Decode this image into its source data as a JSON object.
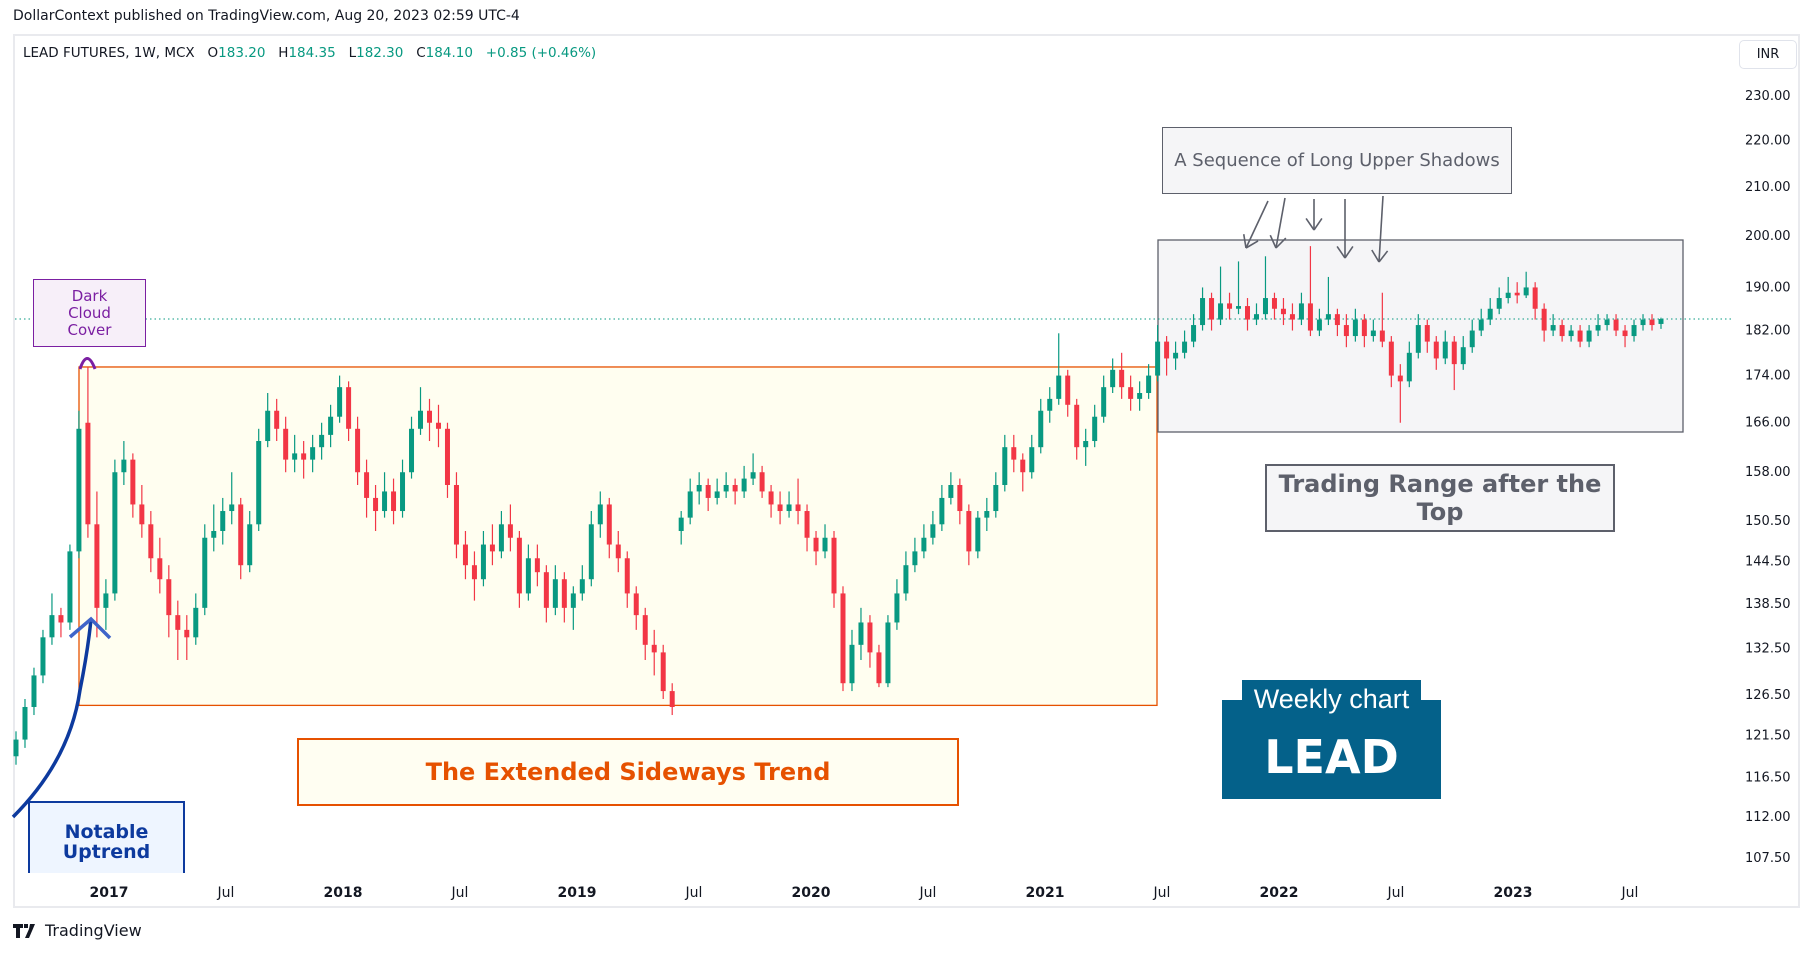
{
  "header": {
    "publisher": "DollarContext published on TradingView.com, Aug 20, 2023 02:59 UTC-4"
  },
  "legend": {
    "symbol": "LEAD FUTURES, 1W, MCX",
    "o_label": "O",
    "o": "183.20",
    "h_label": "H",
    "h": "184.35",
    "l_label": "L",
    "l": "182.30",
    "c_label": "C",
    "c": "184.10",
    "change": "+0.85 (+0.46%)"
  },
  "currency": "INR",
  "footer": {
    "brand": "TradingView"
  },
  "annotations": {
    "dark_cloud": "Dark Cloud Cover",
    "sequence": "A Sequence of Long Upper Shadows",
    "trading_range": "Trading Range after the Top",
    "sideways": "The Extended Sideways Trend",
    "uptrend": "Notable Uptrend",
    "badge_line1": "Weekly chart",
    "badge_line2": "LEAD"
  },
  "colors": {
    "up": "#089981",
    "down": "#f23645",
    "sideways_box": "#e65100",
    "range_box": "#5d606b",
    "dark_cloud": "#7b1fa2",
    "uptrend": "#0d3a9e",
    "badge": "#04618a",
    "last_price_line": "#089981"
  },
  "chart_data": {
    "type": "candlestick",
    "interval": "1W",
    "y_scale": "log",
    "ylim": [
      107.5,
      230
    ],
    "last_price": 184.1,
    "y_ticks": [
      230,
      220,
      210,
      200,
      190,
      182,
      174,
      166,
      158,
      150.5,
      144.5,
      138.5,
      132.5,
      126.5,
      121.5,
      116.5,
      112,
      107.5
    ],
    "x_ticks": [
      {
        "label": "2017",
        "year": true
      },
      {
        "label": "Jul"
      },
      {
        "label": "2018",
        "year": true
      },
      {
        "label": "Jul"
      },
      {
        "label": "2019",
        "year": true
      },
      {
        "label": "Jul"
      },
      {
        "label": "2020",
        "year": true
      },
      {
        "label": "Jul"
      },
      {
        "label": "2021",
        "year": true
      },
      {
        "label": "Jul"
      },
      {
        "label": "2022",
        "year": true
      },
      {
        "label": "Jul"
      },
      {
        "label": "2023",
        "year": true
      },
      {
        "label": "Jul"
      }
    ],
    "sideways_range": [
      125.2,
      175.5
    ],
    "top_range": [
      165,
      200
    ],
    "ohlc": [
      [
        119,
        122,
        118,
        121
      ],
      [
        121,
        126,
        120,
        125
      ],
      [
        125,
        130,
        124,
        129
      ],
      [
        129,
        135,
        128,
        134
      ],
      [
        134,
        140,
        133,
        137
      ],
      [
        137,
        138,
        134,
        136
      ],
      [
        136,
        147,
        135,
        146
      ],
      [
        146,
        168,
        145,
        165
      ],
      [
        166,
        175.5,
        148,
        150
      ],
      [
        150,
        155,
        134,
        138
      ],
      [
        138,
        142,
        135,
        140
      ],
      [
        140,
        160,
        139,
        158
      ],
      [
        158,
        163,
        156,
        160
      ],
      [
        160,
        161,
        151,
        153
      ],
      [
        153,
        156,
        148,
        150
      ],
      [
        150,
        152,
        143,
        145
      ],
      [
        145,
        148,
        140,
        142
      ],
      [
        142,
        144,
        134,
        137
      ],
      [
        137,
        139,
        131,
        135
      ],
      [
        135,
        137,
        131,
        134
      ],
      [
        134,
        140,
        133,
        138
      ],
      [
        138,
        150,
        137,
        148
      ],
      [
        148,
        153,
        146,
        149
      ],
      [
        149,
        154,
        147,
        152
      ],
      [
        152,
        158,
        150,
        153
      ],
      [
        153,
        154,
        142,
        144
      ],
      [
        144,
        152,
        143,
        150
      ],
      [
        150,
        165,
        149,
        163
      ],
      [
        163,
        171,
        162,
        168
      ],
      [
        168,
        170,
        163,
        165
      ],
      [
        165,
        167,
        158,
        160
      ],
      [
        160,
        164,
        158,
        161
      ],
      [
        161,
        163,
        157,
        160
      ],
      [
        160,
        164,
        158,
        162
      ],
      [
        162,
        166,
        160,
        164
      ],
      [
        164,
        169,
        162,
        167
      ],
      [
        167,
        174,
        166,
        172
      ],
      [
        172,
        173,
        163,
        165
      ],
      [
        165,
        167,
        156,
        158
      ],
      [
        158,
        160,
        151,
        154
      ],
      [
        154,
        156,
        149,
        152
      ],
      [
        152,
        158,
        151,
        155
      ],
      [
        155,
        157,
        150,
        152
      ],
      [
        152,
        160,
        151,
        158
      ],
      [
        158,
        167,
        157,
        165
      ],
      [
        165,
        172,
        164,
        168
      ],
      [
        168,
        170,
        163,
        166
      ],
      [
        166,
        169,
        162,
        165
      ],
      [
        165,
        166,
        154,
        156
      ],
      [
        156,
        158,
        145,
        147
      ],
      [
        147,
        149,
        142,
        144
      ],
      [
        144,
        146,
        139,
        142
      ],
      [
        142,
        149,
        141,
        147
      ],
      [
        147,
        150,
        144,
        146
      ],
      [
        146,
        152,
        145,
        150
      ],
      [
        150,
        153,
        146,
        148
      ],
      [
        148,
        149,
        138,
        140
      ],
      [
        140,
        147,
        139,
        145
      ],
      [
        145,
        147,
        141,
        143
      ],
      [
        143,
        144,
        136,
        138
      ],
      [
        138,
        144,
        137,
        142
      ],
      [
        142,
        143,
        136,
        138
      ],
      [
        138,
        141,
        135,
        140
      ],
      [
        140,
        144,
        139,
        142
      ],
      [
        142,
        152,
        141,
        150
      ],
      [
        150,
        155,
        148,
        153
      ],
      [
        153,
        154,
        145,
        147
      ],
      [
        147,
        149,
        143,
        145
      ],
      [
        145,
        146,
        138,
        140
      ],
      [
        140,
        141,
        135,
        137
      ],
      [
        137,
        138,
        131,
        133
      ],
      [
        133,
        135,
        129,
        132
      ],
      [
        132,
        133,
        126,
        127
      ],
      [
        127,
        128,
        124,
        125
      ],
      [
        149,
        152,
        147,
        151
      ],
      [
        151,
        157,
        150,
        155
      ],
      [
        155,
        158,
        153,
        156
      ],
      [
        156,
        157,
        152,
        154
      ],
      [
        154,
        157,
        153,
        155
      ],
      [
        155,
        158,
        154,
        156
      ],
      [
        156,
        157,
        153,
        155
      ],
      [
        155,
        159,
        154,
        157
      ],
      [
        157,
        161,
        156,
        158
      ],
      [
        158,
        159,
        154,
        155
      ],
      [
        155,
        156,
        151,
        153
      ],
      [
        153,
        155,
        150,
        152
      ],
      [
        152,
        155,
        151,
        153
      ],
      [
        153,
        157,
        150,
        152
      ],
      [
        152,
        153,
        146,
        148
      ],
      [
        148,
        149,
        144,
        146
      ],
      [
        146,
        150,
        145,
        148
      ],
      [
        148,
        149,
        138,
        140
      ],
      [
        140,
        141,
        127,
        128
      ],
      [
        128,
        135,
        127,
        133
      ],
      [
        133,
        138,
        131,
        136
      ],
      [
        136,
        137,
        130,
        132
      ],
      [
        132,
        133,
        127.5,
        128
      ],
      [
        128,
        137,
        127.5,
        136
      ],
      [
        136,
        142,
        135,
        140
      ],
      [
        140,
        146,
        139,
        144
      ],
      [
        144,
        148,
        143,
        146
      ],
      [
        146,
        150,
        145,
        148
      ],
      [
        148,
        152,
        147,
        150
      ],
      [
        150,
        156,
        149,
        154
      ],
      [
        154,
        158,
        153,
        156
      ],
      [
        156,
        157,
        150,
        152
      ],
      [
        152,
        153,
        144,
        146
      ],
      [
        146,
        152,
        145,
        151
      ],
      [
        151,
        154,
        149,
        152
      ],
      [
        152,
        158,
        151,
        156
      ],
      [
        156,
        164,
        155,
        162
      ],
      [
        162,
        164,
        158,
        160
      ],
      [
        160,
        161,
        155,
        158
      ],
      [
        158,
        164,
        157,
        162
      ],
      [
        162,
        170,
        161,
        168
      ],
      [
        168,
        172,
        166,
        170
      ],
      [
        170,
        181.5,
        169,
        174
      ],
      [
        174,
        175,
        167,
        169
      ],
      [
        169,
        170,
        160,
        162
      ],
      [
        162,
        165,
        159,
        163
      ],
      [
        163,
        169,
        162,
        167
      ],
      [
        167,
        174,
        166,
        172
      ],
      [
        172,
        177,
        171,
        175
      ],
      [
        175,
        178,
        170,
        172
      ],
      [
        172,
        174,
        168,
        170
      ],
      [
        170,
        173,
        168,
        171
      ],
      [
        171,
        176,
        170,
        174
      ],
      [
        174,
        183,
        173,
        180
      ],
      [
        180,
        181,
        174,
        177
      ],
      [
        177,
        180,
        175,
        178
      ],
      [
        178,
        182,
        177,
        180
      ],
      [
        180,
        185,
        179,
        183
      ],
      [
        183,
        190,
        182,
        188
      ],
      [
        188,
        189,
        182,
        184
      ],
      [
        184,
        194,
        183,
        187
      ],
      [
        187,
        189,
        184,
        186
      ],
      [
        186,
        195,
        185,
        186.5
      ],
      [
        186.5,
        188,
        182,
        184
      ],
      [
        184,
        187,
        183,
        185
      ],
      [
        185,
        196,
        184,
        188
      ],
      [
        188,
        189,
        184,
        186
      ],
      [
        186,
        188,
        183,
        185
      ],
      [
        185,
        187,
        182,
        184
      ],
      [
        184,
        189,
        183,
        187
      ],
      [
        187,
        198,
        181,
        182
      ],
      [
        182,
        186,
        181,
        184
      ],
      [
        184,
        192,
        183,
        185
      ],
      [
        185,
        186,
        181,
        183
      ],
      [
        183,
        185,
        179,
        181
      ],
      [
        181,
        186,
        180,
        184
      ],
      [
        184,
        185,
        179,
        181
      ],
      [
        181,
        184,
        180,
        182
      ],
      [
        182,
        189,
        179,
        180
      ],
      [
        180,
        181,
        172,
        174
      ],
      [
        174,
        176,
        166,
        173
      ],
      [
        173,
        180,
        172,
        178
      ],
      [
        178,
        185,
        177,
        183
      ],
      [
        183,
        184,
        178,
        180
      ],
      [
        180,
        181,
        175,
        177
      ],
      [
        177,
        182,
        176,
        180
      ],
      [
        180,
        181,
        171.5,
        176
      ],
      [
        176,
        181,
        175,
        179
      ],
      [
        179,
        184,
        178,
        182
      ],
      [
        182,
        186,
        181,
        184
      ],
      [
        184,
        188,
        183,
        186
      ],
      [
        186,
        190,
        185,
        188
      ],
      [
        188,
        192,
        187,
        189
      ],
      [
        189,
        191,
        187,
        188.5
      ],
      [
        188.5,
        193,
        188,
        190
      ],
      [
        190,
        191,
        184,
        186
      ],
      [
        186,
        187,
        180,
        182
      ],
      [
        182,
        185,
        181,
        183
      ],
      [
        183,
        184,
        180,
        181
      ],
      [
        181,
        183,
        180,
        182
      ],
      [
        182,
        183,
        179,
        180
      ],
      [
        180,
        183,
        179,
        182
      ],
      [
        182,
        185,
        181,
        183
      ],
      [
        183,
        185,
        182,
        184
      ],
      [
        184,
        185,
        181,
        182
      ],
      [
        182,
        183,
        179,
        181
      ],
      [
        181,
        184,
        180,
        183
      ],
      [
        183,
        185,
        182,
        184
      ],
      [
        184,
        185,
        182,
        183
      ],
      [
        183.2,
        184.35,
        182.3,
        184.1
      ]
    ]
  }
}
